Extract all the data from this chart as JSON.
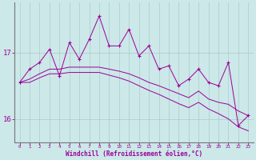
{
  "x": [
    0,
    1,
    2,
    3,
    4,
    5,
    6,
    7,
    8,
    9,
    10,
    11,
    12,
    13,
    14,
    15,
    16,
    17,
    18,
    19,
    20,
    21,
    22,
    23
  ],
  "y_main": [
    16.55,
    16.75,
    16.85,
    17.05,
    16.65,
    17.15,
    16.9,
    17.2,
    17.55,
    17.1,
    17.1,
    17.35,
    16.95,
    17.1,
    16.75,
    16.8,
    16.5,
    16.6,
    16.75,
    16.55,
    16.5,
    16.85,
    15.9,
    16.05
  ],
  "y_smooth1": [
    16.55,
    16.6,
    16.68,
    16.75,
    16.75,
    16.78,
    16.78,
    16.78,
    16.78,
    16.75,
    16.72,
    16.68,
    16.62,
    16.55,
    16.5,
    16.44,
    16.38,
    16.32,
    16.42,
    16.3,
    16.25,
    16.22,
    16.12,
    16.05
  ],
  "y_smooth2": [
    16.55,
    16.55,
    16.62,
    16.68,
    16.68,
    16.7,
    16.7,
    16.7,
    16.7,
    16.66,
    16.62,
    16.57,
    16.5,
    16.43,
    16.37,
    16.3,
    16.23,
    16.17,
    16.25,
    16.15,
    16.08,
    16.0,
    15.88,
    15.82
  ],
  "line_color": "#990099",
  "bg_color": "#cce8e8",
  "grid_color": "#aacccc",
  "xlabel": "Windchill (Refroidissement éolien,°C)",
  "yticks": [
    16,
    17
  ],
  "xticks": [
    0,
    1,
    2,
    3,
    4,
    5,
    6,
    7,
    8,
    9,
    10,
    11,
    12,
    13,
    14,
    15,
    16,
    17,
    18,
    19,
    20,
    21,
    22,
    23
  ],
  "ylim": [
    15.65,
    17.75
  ],
  "xlim": [
    -0.5,
    23.5
  ]
}
